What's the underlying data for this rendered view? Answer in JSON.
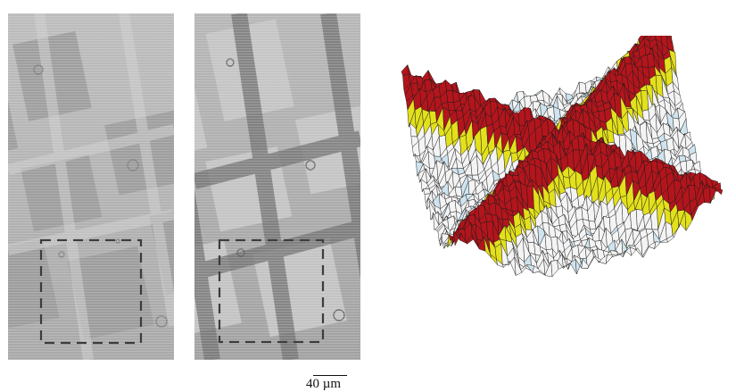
{
  "figure": {
    "panels": [
      {
        "name": "micrograph-left",
        "kind": "grayscale grid micrograph with dashed region of interest"
      },
      {
        "name": "micrograph-middle",
        "kind": "grayscale grid micrograph with dashed region of interest"
      },
      {
        "name": "surface-3d",
        "kind": "3D height surface rendering"
      }
    ],
    "colors": {
      "grid_light": "#b9b9b9",
      "grid_dark": "#6f6f6f",
      "dashed_box": "#3c3c3c",
      "surface_red": "#b3151c",
      "surface_yellow": "#e3e01c",
      "surface_white": "#f4f4f4",
      "surface_lightblue": "#cfe4ee"
    },
    "scale_bar": {
      "label": "40 µm"
    }
  }
}
